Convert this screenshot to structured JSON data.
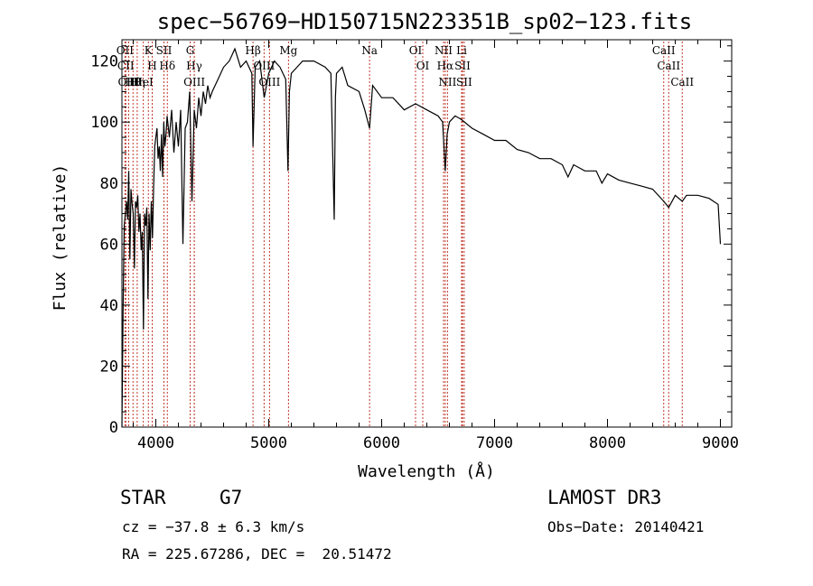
{
  "chart_data": {
    "type": "line",
    "title": "spec−56769−HD150715N223351B_sp02−123.fits",
    "xlabel": "Wavelength (Å)",
    "ylabel": "Flux (relative)",
    "xlim": [
      3700,
      9100
    ],
    "ylim": [
      0,
      127
    ],
    "xticks": [
      4000,
      5000,
      6000,
      7000,
      8000,
      9000
    ],
    "yticks": [
      0,
      20,
      40,
      60,
      80,
      100,
      120
    ],
    "series": [
      {
        "name": "flux",
        "x": [
          3700,
          3710,
          3720,
          3730,
          3740,
          3750,
          3760,
          3770,
          3780,
          3790,
          3800,
          3810,
          3820,
          3830,
          3840,
          3850,
          3860,
          3870,
          3880,
          3890,
          3900,
          3910,
          3920,
          3930,
          3940,
          3950,
          3960,
          3970,
          3980,
          3990,
          4000,
          4010,
          4020,
          4030,
          4040,
          4050,
          4060,
          4070,
          4080,
          4090,
          4100,
          4120,
          4140,
          4160,
          4180,
          4200,
          4220,
          4240,
          4260,
          4280,
          4300,
          4320,
          4340,
          4360,
          4380,
          4400,
          4420,
          4440,
          4460,
          4480,
          4500,
          4550,
          4600,
          4650,
          4700,
          4750,
          4800,
          4850,
          4861,
          4880,
          4920,
          4960,
          5000,
          5050,
          5100,
          5150,
          5170,
          5183,
          5200,
          5250,
          5300,
          5400,
          5500,
          5550,
          5580,
          5590,
          5600,
          5650,
          5700,
          5800,
          5850,
          5893,
          5920,
          6000,
          6100,
          6200,
          6300,
          6400,
          6500,
          6540,
          6563,
          6580,
          6600,
          6650,
          6700,
          6800,
          6900,
          7000,
          7100,
          7200,
          7300,
          7400,
          7500,
          7600,
          7650,
          7700,
          7800,
          7900,
          7950,
          8000,
          8100,
          8200,
          8300,
          8400,
          8498,
          8542,
          8600,
          8662,
          8700,
          8800,
          8900,
          8980,
          9000
        ],
        "values": [
          0,
          40,
          66,
          70,
          74,
          68,
          84,
          55,
          78,
          73,
          70,
          52,
          74,
          72,
          76,
          64,
          70,
          58,
          64,
          32,
          70,
          66,
          72,
          42,
          70,
          58,
          74,
          62,
          78,
          92,
          95,
          98,
          88,
          92,
          84,
          96,
          82,
          100,
          92,
          96,
          102,
          95,
          104,
          90,
          100,
          92,
          104,
          60,
          98,
          100,
          110,
          74,
          104,
          98,
          108,
          102,
          110,
          106,
          112,
          108,
          110,
          114,
          118,
          120,
          124,
          118,
          120,
          116,
          92,
          118,
          120,
          108,
          116,
          120,
          118,
          114,
          84,
          110,
          116,
          118,
          120,
          120,
          118,
          116,
          68,
          108,
          116,
          118,
          112,
          110,
          104,
          98,
          112,
          108,
          108,
          104,
          106,
          104,
          102,
          100,
          84,
          96,
          100,
          102,
          101,
          98,
          96,
          94,
          94,
          91,
          90,
          88,
          88,
          86,
          82,
          86,
          84,
          84,
          80,
          83,
          81,
          80,
          79,
          78,
          74,
          72,
          76,
          74,
          76,
          76,
          75,
          73,
          60
        ]
      }
    ],
    "lines": [
      {
        "name": "Hθ",
        "wl": 3798
      },
      {
        "name": "OII",
        "wl": 3727
      },
      {
        "name": "CII",
        "wl": 3734
      },
      {
        "name": "OIII",
        "wl": 3760
      },
      {
        "name": "Hη",
        "wl": 3835
      },
      {
        "name": "HeI",
        "wl": 3889
      },
      {
        "name": "K",
        "wl": 3934
      },
      {
        "name": "H",
        "wl": 3968
      },
      {
        "name": "SII",
        "wl": 4072
      },
      {
        "name": "Hδ",
        "wl": 4102
      },
      {
        "name": "OIII",
        "wl": 4341
      },
      {
        "name": "Hγ",
        "wl": 4340
      },
      {
        "name": "G",
        "wl": 4304
      },
      {
        "name": "Hβ",
        "wl": 4861
      },
      {
        "name": "OIII",
        "wl": 4959
      },
      {
        "name": "OIII",
        "wl": 5007
      },
      {
        "name": "Mg",
        "wl": 5175
      },
      {
        "name": "Na",
        "wl": 5893
      },
      {
        "name": "OI",
        "wl": 6300
      },
      {
        "name": "OI",
        "wl": 6364
      },
      {
        "name": "NII",
        "wl": 6548
      },
      {
        "name": "Hα",
        "wl": 6563
      },
      {
        "name": "NII",
        "wl": 6583
      },
      {
        "name": "Li",
        "wl": 6708
      },
      {
        "name": "SII",
        "wl": 6716
      },
      {
        "name": "SII",
        "wl": 6731
      },
      {
        "name": "CaII",
        "wl": 8498
      },
      {
        "name": "CaII",
        "wl": 8542
      },
      {
        "name": "CaII",
        "wl": 8662
      }
    ]
  },
  "info": {
    "class": "STAR",
    "subclass": "G7",
    "cz": "cz = −37.8 ± 6.3 km/s",
    "radec": "RA = 225.67286, DEC =  20.51472",
    "survey": "LAMOST DR3",
    "obsdate": "Obs−Date: 20140421"
  },
  "style": {
    "line_color": "#000000",
    "marker_color": "#c0392b",
    "axis_color": "#000000"
  }
}
